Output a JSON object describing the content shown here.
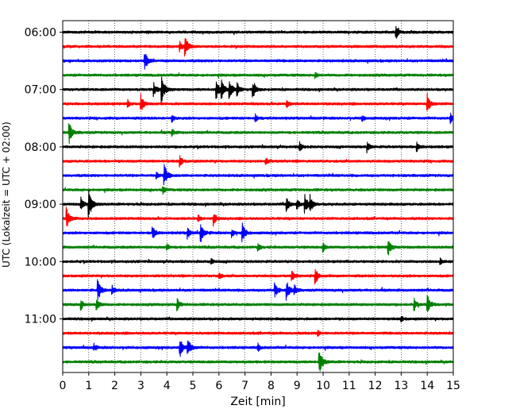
{
  "chart_data": {
    "type": "line",
    "title": "",
    "xlabel": "Zeit  [min]",
    "ylabel": "UTC (Lokalzeit = UTC + 02:00)",
    "xlim": [
      0,
      15
    ],
    "x_ticks": [
      "0",
      "1",
      "2",
      "3",
      "4",
      "5",
      "6",
      "7",
      "8",
      "9",
      "10",
      "11",
      "12",
      "13",
      "14",
      "15"
    ],
    "grid": "vertical-dotted",
    "y_ticks": [
      {
        "label": "06:00",
        "trace": 0
      },
      {
        "label": "07:00",
        "trace": 4
      },
      {
        "label": "08:00",
        "trace": 8
      },
      {
        "label": "09:00",
        "trace": 12
      },
      {
        "label": "10:00",
        "trace": 16
      },
      {
        "label": "11:00",
        "trace": 20
      }
    ],
    "trace_interval_min": 15,
    "series": [
      {
        "start": "06:00",
        "color": "#000000",
        "events": [
          [
            12.8,
            0.9
          ]
        ]
      },
      {
        "start": "06:15",
        "color": "#ff0000",
        "events": [
          [
            4.7,
            1.4
          ],
          [
            4.5,
            0.7
          ]
        ]
      },
      {
        "start": "06:30",
        "color": "#0000ff",
        "events": [
          [
            3.15,
            1.3
          ]
        ]
      },
      {
        "start": "06:45",
        "color": "#008000",
        "events": [
          [
            9.7,
            0.4
          ]
        ]
      },
      {
        "start": "07:00",
        "color": "#000000",
        "events": [
          [
            3.8,
            1.8
          ],
          [
            3.5,
            1.0
          ],
          [
            5.9,
            1.4
          ],
          [
            6.1,
            1.3
          ],
          [
            6.4,
            1.4
          ],
          [
            6.7,
            1.0
          ],
          [
            7.3,
            1.2
          ]
        ]
      },
      {
        "start": "07:15",
        "color": "#ff0000",
        "events": [
          [
            3.0,
            1.3
          ],
          [
            14.0,
            1.3
          ],
          [
            8.6,
            0.6
          ],
          [
            2.5,
            0.5
          ]
        ]
      },
      {
        "start": "07:30",
        "color": "#0000ff",
        "events": [
          [
            4.2,
            0.5
          ],
          [
            7.4,
            0.6
          ],
          [
            11.5,
            0.5
          ],
          [
            14.9,
            0.7
          ]
        ]
      },
      {
        "start": "07:45",
        "color": "#008000",
        "events": [
          [
            0.25,
            1.4
          ],
          [
            4.2,
            0.5
          ]
        ]
      },
      {
        "start": "08:00",
        "color": "#000000",
        "events": [
          [
            9.1,
            0.7
          ],
          [
            11.7,
            0.7
          ],
          [
            13.6,
            0.7
          ]
        ]
      },
      {
        "start": "08:15",
        "color": "#ff0000",
        "events": [
          [
            4.5,
            0.8
          ],
          [
            7.8,
            0.5
          ]
        ]
      },
      {
        "start": "08:30",
        "color": "#0000ff",
        "events": [
          [
            3.9,
            1.5
          ],
          [
            3.6,
            0.6
          ]
        ]
      },
      {
        "start": "08:45",
        "color": "#008000",
        "events": [
          [
            3.85,
            0.6
          ]
        ]
      },
      {
        "start": "09:00",
        "color": "#000000",
        "events": [
          [
            1.0,
            2.0
          ],
          [
            0.7,
            0.9
          ],
          [
            8.6,
            1.1
          ],
          [
            9.3,
            1.3
          ],
          [
            9.5,
            1.1
          ],
          [
            9.0,
            0.7
          ]
        ]
      },
      {
        "start": "09:15",
        "color": "#ff0000",
        "events": [
          [
            0.15,
            1.5
          ],
          [
            5.8,
            0.9
          ],
          [
            5.2,
            0.5
          ]
        ]
      },
      {
        "start": "09:30",
        "color": "#0000ff",
        "events": [
          [
            3.45,
            1.0
          ],
          [
            4.8,
            0.8
          ],
          [
            5.3,
            1.3
          ],
          [
            6.9,
            1.3
          ],
          [
            6.5,
            0.6
          ]
        ]
      },
      {
        "start": "09:45",
        "color": "#008000",
        "events": [
          [
            12.5,
            1.2
          ],
          [
            10.0,
            0.6
          ],
          [
            7.5,
            0.5
          ],
          [
            4.0,
            0.5
          ]
        ]
      },
      {
        "start": "10:00",
        "color": "#000000",
        "events": [
          [
            14.5,
            0.5
          ],
          [
            5.7,
            0.4
          ]
        ]
      },
      {
        "start": "10:15",
        "color": "#ff0000",
        "events": [
          [
            9.7,
            1.1
          ],
          [
            8.8,
            0.8
          ],
          [
            6.0,
            0.5
          ]
        ]
      },
      {
        "start": "10:30",
        "color": "#0000ff",
        "events": [
          [
            1.35,
            1.5
          ],
          [
            8.15,
            1.1
          ],
          [
            8.6,
            1.3
          ],
          [
            1.9,
            0.6
          ],
          [
            8.9,
            0.7
          ]
        ]
      },
      {
        "start": "10:45",
        "color": "#008000",
        "events": [
          [
            1.3,
            1.0
          ],
          [
            0.7,
            0.8
          ],
          [
            4.4,
            0.8
          ],
          [
            14.0,
            1.4
          ],
          [
            13.5,
            0.8
          ]
        ]
      },
      {
        "start": "11:00",
        "color": "#000000",
        "events": [
          [
            13.0,
            0.4
          ]
        ]
      },
      {
        "start": "11:15",
        "color": "#ff0000",
        "events": [
          [
            9.8,
            0.4
          ]
        ]
      },
      {
        "start": "11:30",
        "color": "#0000ff",
        "events": [
          [
            4.5,
            1.3
          ],
          [
            4.8,
            1.4
          ],
          [
            1.2,
            0.5
          ],
          [
            7.5,
            0.5
          ]
        ]
      },
      {
        "start": "11:45",
        "color": "#008000",
        "events": [
          [
            9.85,
            1.8
          ]
        ]
      }
    ]
  }
}
